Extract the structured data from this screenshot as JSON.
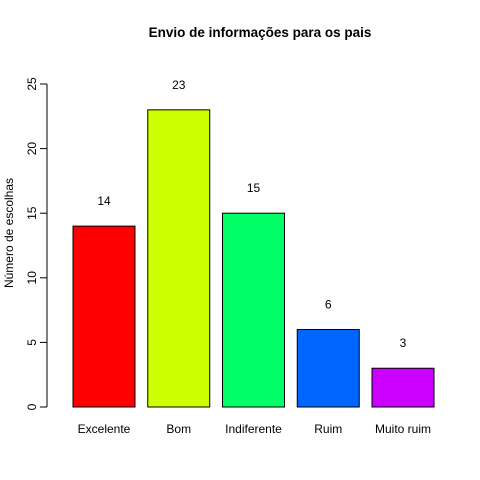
{
  "chart_data": {
    "type": "bar",
    "title": "Envio de informações para os pais",
    "xlabel": "",
    "ylabel": "Número de escolhas",
    "categories": [
      "Excelente",
      "Bom",
      "Indiferente",
      "Ruim",
      "Muito ruim"
    ],
    "values": [
      14,
      23,
      15,
      6,
      3
    ],
    "data_labels": [
      "14",
      "23",
      "15",
      "6",
      "3"
    ],
    "colors": [
      "#ff0000",
      "#ccff00",
      "#00ff66",
      "#0066ff",
      "#cc00ff"
    ],
    "ylim": [
      0,
      25
    ],
    "yticks": [
      0,
      5,
      10,
      15,
      20,
      25
    ],
    "grid": false,
    "legend": "none"
  }
}
